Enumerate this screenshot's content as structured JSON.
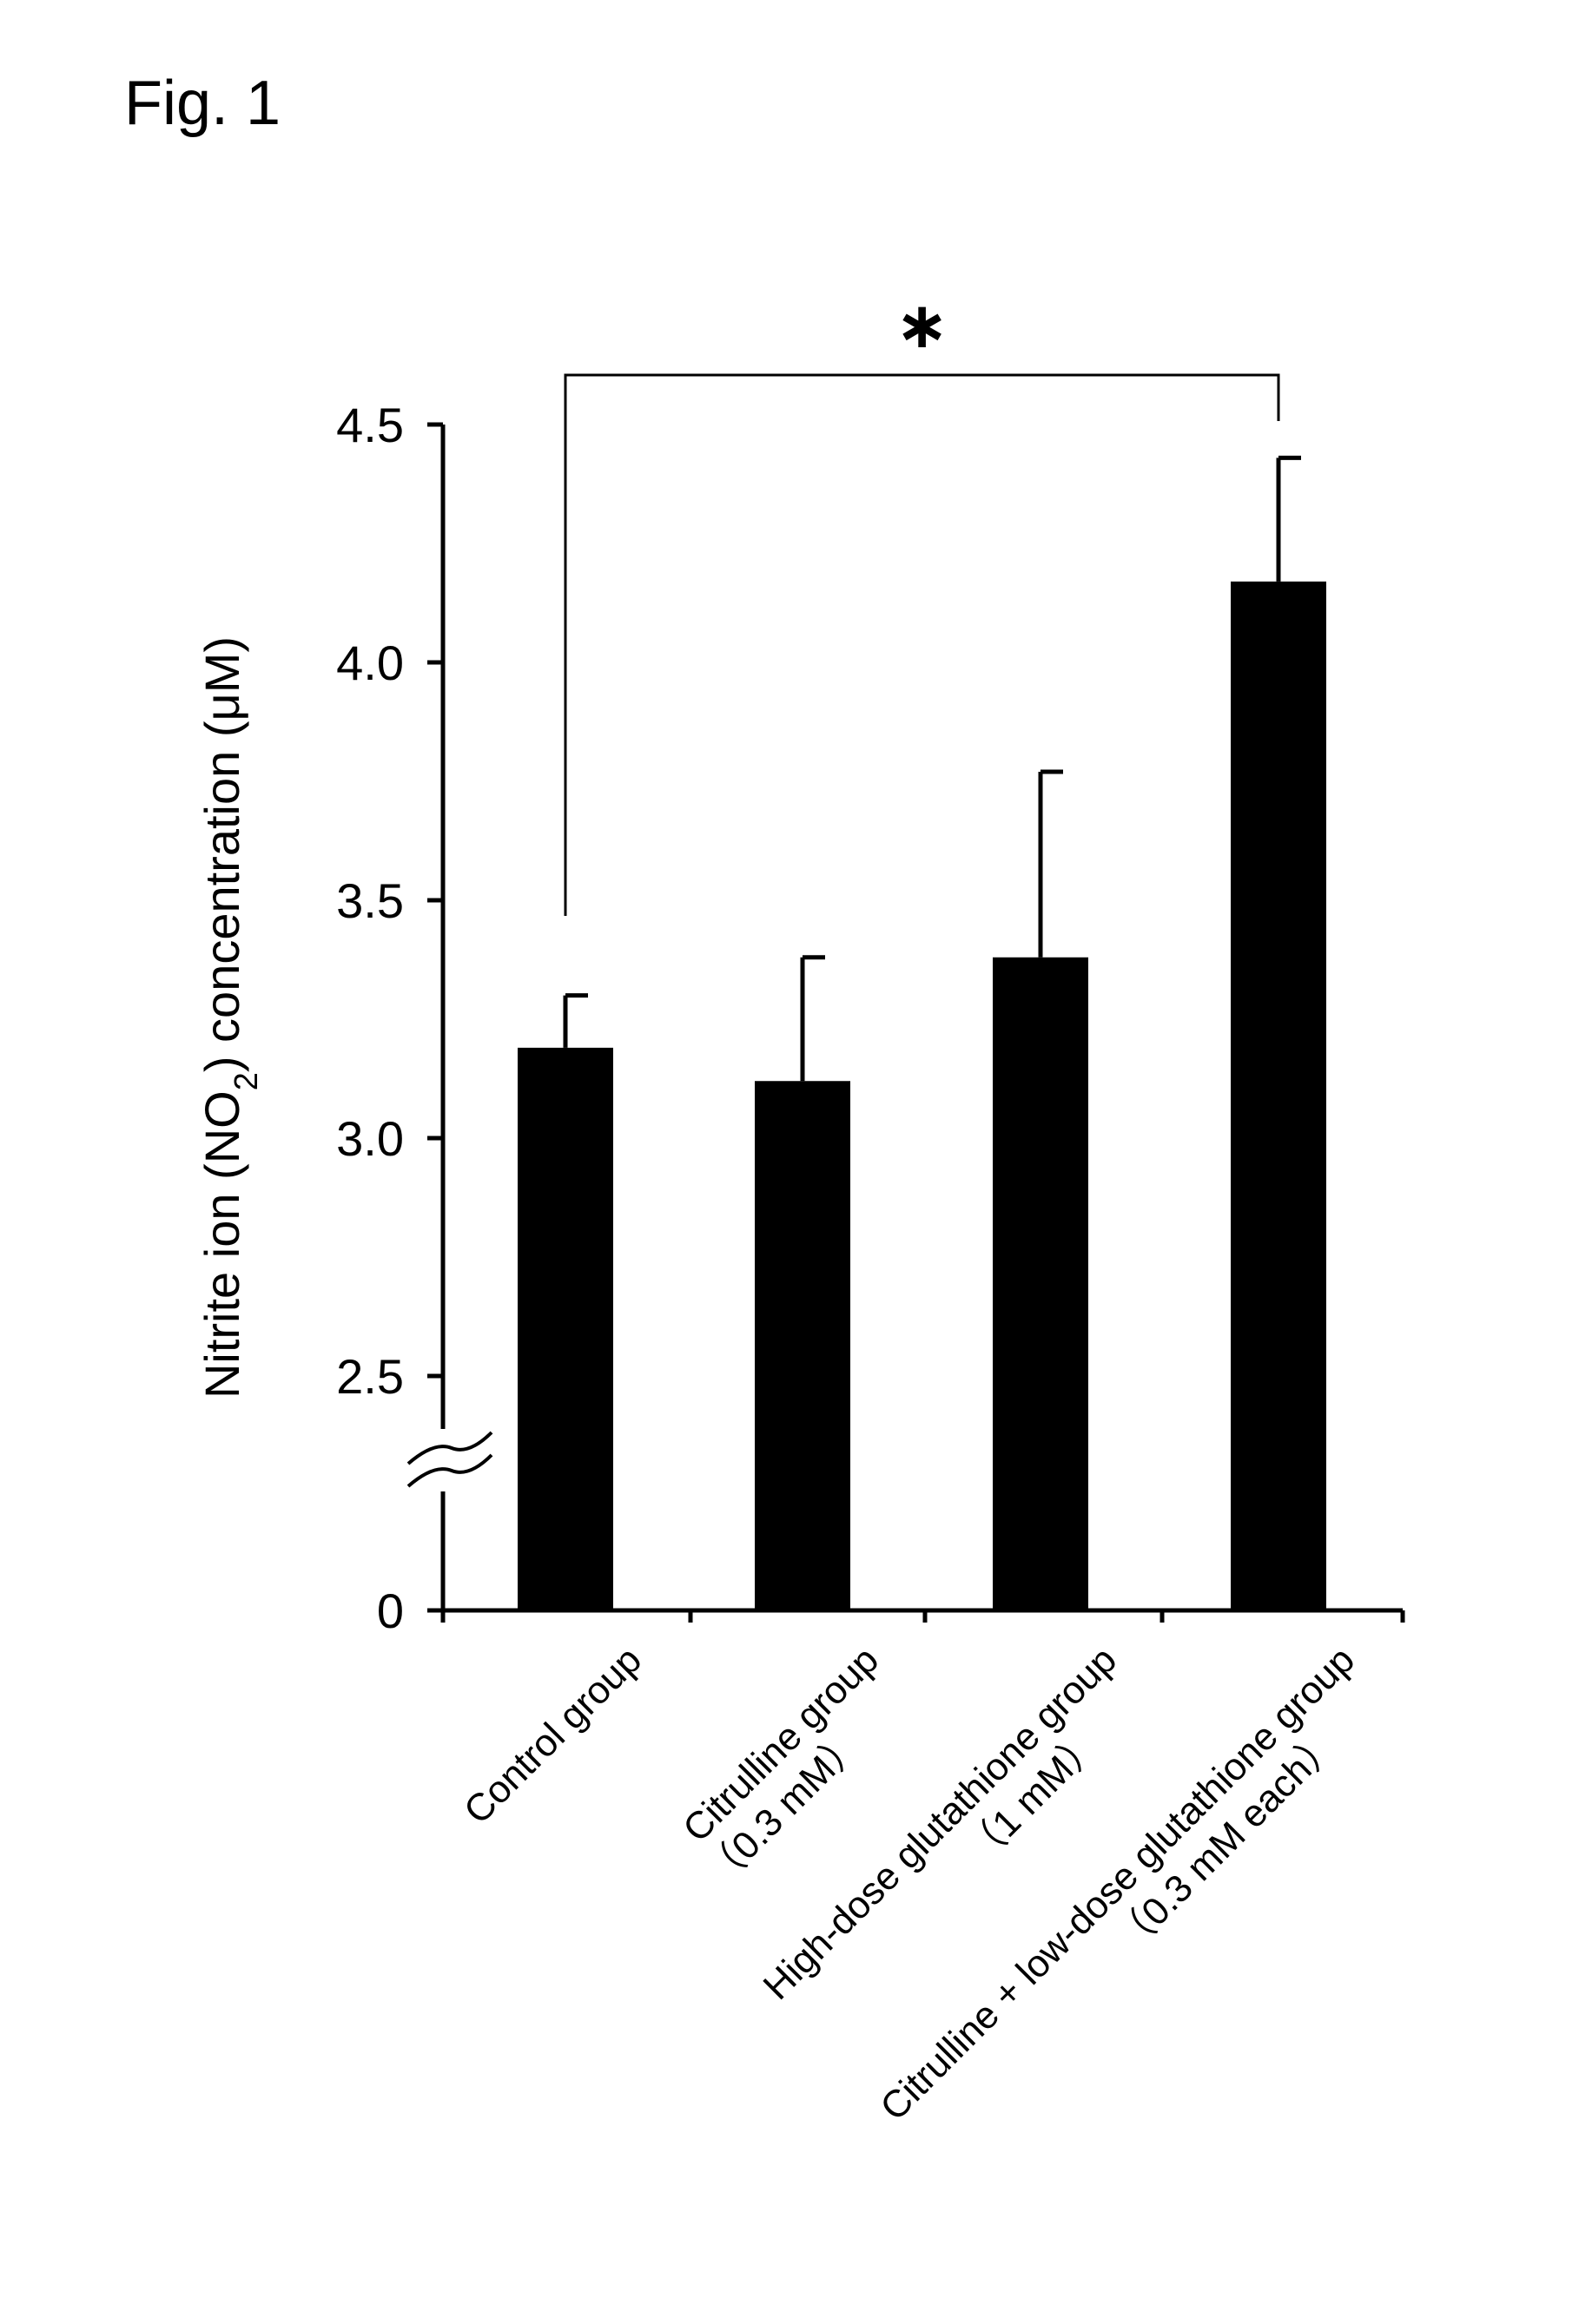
{
  "figure_label": "Fig. 1",
  "chart_data": {
    "type": "bar",
    "title": "",
    "ylabel": "Nitrite ion (NO2) concentration (μM)",
    "ylabel_parts": {
      "before": "Nitrite ion (NO",
      "sub": "2",
      "after": ") concentration (μM)"
    },
    "xlabel": "",
    "y_axis_break": true,
    "y_ticks": [
      "0",
      "2.5",
      "3.0",
      "3.5",
      "4.0",
      "4.5"
    ],
    "ylim": [
      2.5,
      4.5
    ],
    "categories": [
      [
        "Control group"
      ],
      [
        "Citrulline group",
        "（0.3 mM）"
      ],
      [
        "High-dose glutathione group",
        "（1 mM）"
      ],
      [
        "Citrulline + low-dose glutathione group",
        "（0.3 mM each）"
      ]
    ],
    "values": [
      3.19,
      3.12,
      3.38,
      4.17
    ],
    "errors": [
      0.11,
      0.26,
      0.39,
      0.26
    ],
    "significance": {
      "symbol": "∗",
      "between": [
        0,
        3
      ]
    },
    "bar_color": "#000000",
    "grid": false
  }
}
